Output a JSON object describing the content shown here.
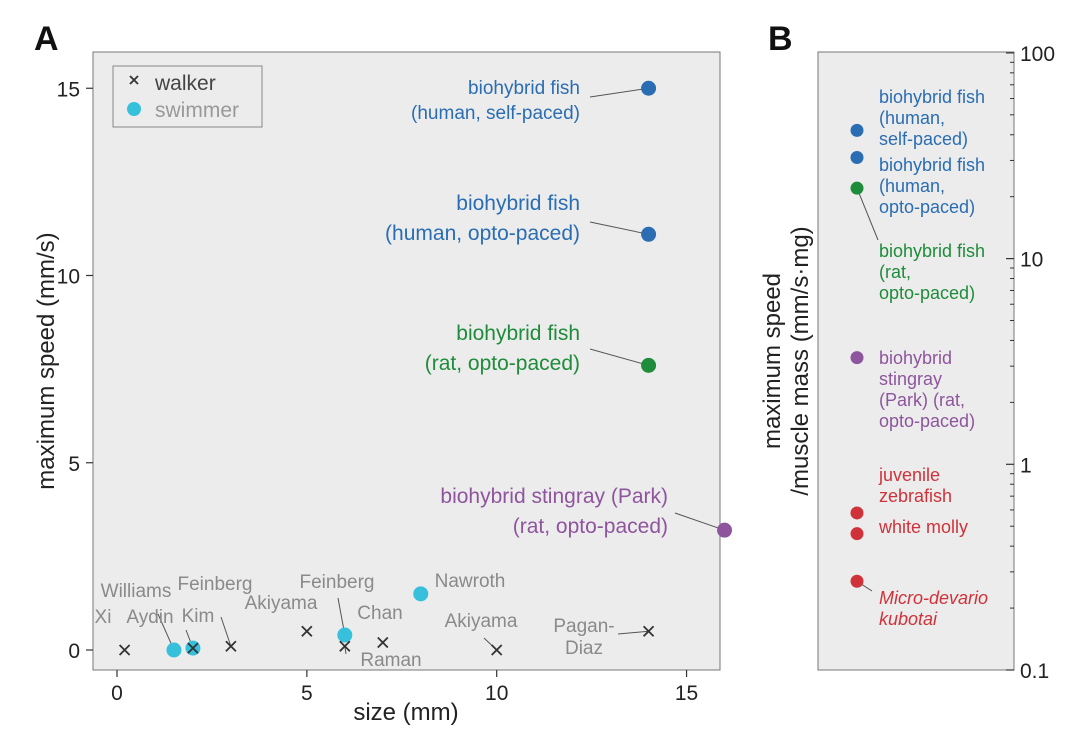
{
  "chart_data": [
    {
      "panel": "A",
      "type": "scatter",
      "xlabel": "size (mm)",
      "ylabel": "maximum speed (mm/s)",
      "xlim": [
        -0.5,
        16.2
      ],
      "ylim": [
        -0.5,
        16
      ],
      "xticks": [
        0,
        5,
        10,
        15
      ],
      "yticks": [
        0,
        5,
        10,
        15
      ],
      "grid": false,
      "legend": {
        "position": "top-left",
        "entries": [
          {
            "symbol": "x",
            "label": "walker"
          },
          {
            "symbol": "dot",
            "label": "swimmer"
          }
        ]
      },
      "points": [
        {
          "name": "biohybrid-fish-human-self-paced",
          "x": 14,
          "y": 15,
          "kind": "swimmer",
          "color": "#2a6db3",
          "label": [
            "biohybrid fish",
            "(human, self-paced)"
          ]
        },
        {
          "name": "biohybrid-fish-human-opto-paced",
          "x": 14,
          "y": 11.1,
          "kind": "swimmer",
          "color": "#2a6db3",
          "label": [
            "biohybrid fish",
            "(human, opto-paced)"
          ]
        },
        {
          "name": "biohybrid-fish-rat-opto-paced",
          "x": 14,
          "y": 7.6,
          "kind": "swimmer",
          "color": "#1e8c3a",
          "label": [
            "biohybrid fish",
            "(rat, opto-paced)"
          ]
        },
        {
          "name": "biohybrid-stingray-park",
          "x": 16,
          "y": 3.2,
          "kind": "swimmer",
          "color": "#8e559e",
          "label": [
            "biohybrid stingray (Park)",
            "(rat, opto-paced)"
          ]
        },
        {
          "name": "williams",
          "x": 1.5,
          "y": 0,
          "kind": "swimmer",
          "color": "#36c0dc",
          "label": [
            "Williams"
          ]
        },
        {
          "name": "kim",
          "x": 2,
          "y": 0.05,
          "kind": "swimmer",
          "color": "#36c0dc",
          "label": [
            "Kim"
          ]
        },
        {
          "name": "feinberg-swimmer",
          "x": 6,
          "y": 0.4,
          "kind": "swimmer",
          "color": "#36c0dc",
          "label": [
            "Feinberg"
          ]
        },
        {
          "name": "nawroth",
          "x": 8,
          "y": 1.5,
          "kind": "swimmer",
          "color": "#36c0dc",
          "label": [
            "Nawroth"
          ]
        },
        {
          "name": "xi",
          "x": 0.2,
          "y": 0,
          "kind": "walker",
          "color": "#333333",
          "label": [
            "Xi"
          ]
        },
        {
          "name": "aydin",
          "x": 2,
          "y": 0.05,
          "kind": "walker",
          "color": "#333333",
          "label": [
            "Aydin"
          ]
        },
        {
          "name": "feinberg-walker",
          "x": 3,
          "y": 0.1,
          "kind": "walker",
          "color": "#333333",
          "label": [
            "Feinberg"
          ]
        },
        {
          "name": "akiyama-1",
          "x": 5,
          "y": 0.5,
          "kind": "walker",
          "color": "#333333",
          "label": [
            "Akiyama"
          ]
        },
        {
          "name": "raman",
          "x": 6,
          "y": 0.1,
          "kind": "walker",
          "color": "#333333",
          "label": [
            "Raman"
          ]
        },
        {
          "name": "chan",
          "x": 7,
          "y": 0.2,
          "kind": "walker",
          "color": "#333333",
          "label": [
            "Chan"
          ]
        },
        {
          "name": "akiyama-2",
          "x": 10,
          "y": 0,
          "kind": "walker",
          "color": "#333333",
          "label": [
            "Akiyama"
          ]
        },
        {
          "name": "pagan-diaz",
          "x": 14,
          "y": 0.5,
          "kind": "walker",
          "color": "#333333",
          "label": [
            "Pagan-",
            "Diaz"
          ]
        }
      ]
    },
    {
      "panel": "B",
      "type": "scatter",
      "ylabel": [
        "maximum speed",
        "/muscle mass (mm/s·mg)"
      ],
      "yscale": "log",
      "ylim": [
        0.1,
        100
      ],
      "yticks": [
        0.1,
        1,
        10,
        100
      ],
      "ytick_labels": [
        "0.1",
        "1",
        "10",
        "100"
      ],
      "axis_side": "right",
      "points": [
        {
          "name": "biohybrid-fish-human-self-paced",
          "y": 42,
          "color": "#2a6db3",
          "italic": false,
          "label": [
            "biohybrid fish",
            "(human,",
            "self-paced)"
          ]
        },
        {
          "name": "biohybrid-fish-human-opto-paced",
          "y": 31,
          "color": "#2a6db3",
          "italic": false,
          "label": [
            "biohybrid fish",
            "(human,",
            "opto-paced)"
          ]
        },
        {
          "name": "biohybrid-fish-rat-opto-paced",
          "y": 22,
          "color": "#1e8c3a",
          "italic": false,
          "label": [
            "biohybrid fish",
            "(rat,",
            "opto-paced)"
          ]
        },
        {
          "name": "biohybrid-stingray-park",
          "y": 3.3,
          "color": "#8e559e",
          "italic": false,
          "label": [
            "biohybrid",
            "stingray",
            "(Park) (rat,",
            "opto-paced)"
          ]
        },
        {
          "name": "juvenile-zebrafish",
          "y": 0.58,
          "color": "#d0323a",
          "italic": false,
          "label": [
            "juvenile",
            "zebrafish"
          ]
        },
        {
          "name": "white-molly",
          "y": 0.46,
          "color": "#d0323a",
          "italic": false,
          "label": [
            "white molly"
          ]
        },
        {
          "name": "micro-devario-kubotai",
          "y": 0.27,
          "color": "#d0323a",
          "italic": true,
          "label": [
            "Micro-devario",
            "kubotai"
          ]
        }
      ]
    }
  ]
}
